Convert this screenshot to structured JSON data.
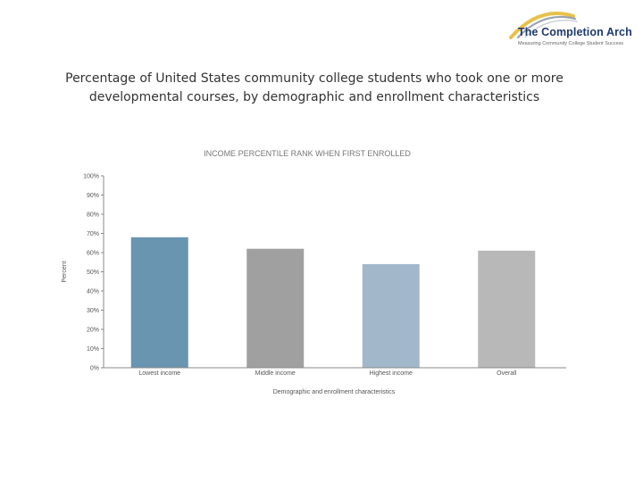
{
  "brand": {
    "name": "The Completion Arch",
    "tagline": "Measuring Community College Student Success",
    "colors": {
      "navy": "#1f3a6e",
      "gold": "#e8c04a",
      "grey": "#9aa3ad"
    }
  },
  "page_title_lines": [
    "Percentage of United States community college students who took one or more",
    "developmental courses, by demographic and enrollment characteristics"
  ],
  "chart_data": {
    "type": "bar",
    "title": "INCOME PERCENTILE RANK WHEN FIRST ENROLLED",
    "xlabel": "Demographic and enrollment characteristics",
    "ylabel": "Percent",
    "categories": [
      "Lowest income",
      "Middle income",
      "Highest income",
      "Overall"
    ],
    "values": [
      68,
      62,
      54,
      61
    ],
    "colors": [
      "#6995b0",
      "#a0a0a0",
      "#a2b7c9",
      "#b8b8b8"
    ],
    "ylim": [
      0,
      100
    ],
    "yticks": [
      "0%",
      "10%",
      "20%",
      "30%",
      "40%",
      "50%",
      "60%",
      "70%",
      "80%",
      "90%",
      "100%"
    ],
    "grid": false,
    "legend": "none"
  }
}
